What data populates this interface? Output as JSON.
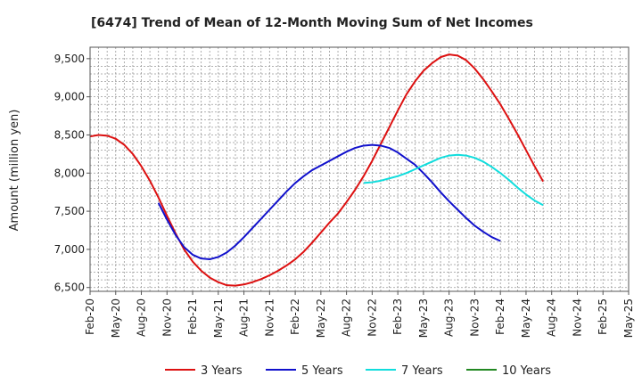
{
  "chart_data": {
    "type": "line",
    "title": "[6474]  Trend of Mean of 12-Month Moving Sum of Net Incomes",
    "ylabel": "Amount (million yen)",
    "xlabel": "",
    "ylim": [
      6450,
      9650
    ],
    "yticks": [
      6500,
      7000,
      7500,
      8000,
      8500,
      9000,
      9500
    ],
    "ytick_labels": [
      "6,500",
      "7,000",
      "7,500",
      "8,000",
      "8,500",
      "9,000",
      "9,500"
    ],
    "x_start": "2020-02",
    "x_end": "2025-05",
    "xtick_labels": [
      "Feb-20",
      "May-20",
      "Aug-20",
      "Nov-20",
      "Feb-21",
      "May-21",
      "Aug-21",
      "Nov-21",
      "Feb-22",
      "May-22",
      "Aug-22",
      "Nov-22",
      "Feb-23",
      "May-23",
      "Aug-23",
      "Nov-23",
      "Feb-24",
      "May-24",
      "Aug-24",
      "Nov-24",
      "Feb-25",
      "May-25"
    ],
    "grid": true,
    "legend_position": "bottom",
    "series": [
      {
        "name": "3 Years",
        "color": "#dd1111",
        "points": [
          [
            "2020-02",
            8480
          ],
          [
            "2020-03",
            8500
          ],
          [
            "2020-04",
            8490
          ],
          [
            "2020-05",
            8450
          ],
          [
            "2020-06",
            8370
          ],
          [
            "2020-07",
            8250
          ],
          [
            "2020-08",
            8090
          ],
          [
            "2020-09",
            7900
          ],
          [
            "2020-10",
            7680
          ],
          [
            "2020-11",
            7440
          ],
          [
            "2020-12",
            7210
          ],
          [
            "2021-01",
            7000
          ],
          [
            "2021-02",
            6840
          ],
          [
            "2021-03",
            6720
          ],
          [
            "2021-04",
            6630
          ],
          [
            "2021-05",
            6570
          ],
          [
            "2021-06",
            6530
          ],
          [
            "2021-07",
            6525
          ],
          [
            "2021-08",
            6540
          ],
          [
            "2021-09",
            6570
          ],
          [
            "2021-10",
            6610
          ],
          [
            "2021-11",
            6660
          ],
          [
            "2021-12",
            6720
          ],
          [
            "2022-01",
            6790
          ],
          [
            "2022-02",
            6870
          ],
          [
            "2022-03",
            6970
          ],
          [
            "2022-04",
            7090
          ],
          [
            "2022-05",
            7220
          ],
          [
            "2022-06",
            7350
          ],
          [
            "2022-07",
            7470
          ],
          [
            "2022-08",
            7620
          ],
          [
            "2022-09",
            7780
          ],
          [
            "2022-10",
            7960
          ],
          [
            "2022-11",
            8160
          ],
          [
            "2022-12",
            8380
          ],
          [
            "2023-01",
            8600
          ],
          [
            "2023-02",
            8820
          ],
          [
            "2023-03",
            9030
          ],
          [
            "2023-04",
            9200
          ],
          [
            "2023-05",
            9340
          ],
          [
            "2023-06",
            9440
          ],
          [
            "2023-07",
            9520
          ],
          [
            "2023-08",
            9555
          ],
          [
            "2023-09",
            9540
          ],
          [
            "2023-10",
            9480
          ],
          [
            "2023-11",
            9370
          ],
          [
            "2023-12",
            9230
          ],
          [
            "2024-01",
            9070
          ],
          [
            "2024-02",
            8900
          ],
          [
            "2024-03",
            8710
          ],
          [
            "2024-04",
            8510
          ],
          [
            "2024-05",
            8300
          ],
          [
            "2024-06",
            8090
          ],
          [
            "2024-07",
            7890
          ]
        ]
      },
      {
        "name": "5 Years",
        "color": "#1111cc",
        "points": [
          [
            "2020-10",
            7610
          ],
          [
            "2020-11",
            7390
          ],
          [
            "2020-12",
            7190
          ],
          [
            "2021-01",
            7030
          ],
          [
            "2021-02",
            6930
          ],
          [
            "2021-03",
            6880
          ],
          [
            "2021-04",
            6870
          ],
          [
            "2021-05",
            6900
          ],
          [
            "2021-06",
            6960
          ],
          [
            "2021-07",
            7050
          ],
          [
            "2021-08",
            7160
          ],
          [
            "2021-09",
            7280
          ],
          [
            "2021-10",
            7400
          ],
          [
            "2021-11",
            7520
          ],
          [
            "2021-12",
            7640
          ],
          [
            "2022-01",
            7760
          ],
          [
            "2022-02",
            7870
          ],
          [
            "2022-03",
            7960
          ],
          [
            "2022-04",
            8040
          ],
          [
            "2022-05",
            8100
          ],
          [
            "2022-06",
            8160
          ],
          [
            "2022-07",
            8220
          ],
          [
            "2022-08",
            8280
          ],
          [
            "2022-09",
            8330
          ],
          [
            "2022-10",
            8360
          ],
          [
            "2022-11",
            8370
          ],
          [
            "2022-12",
            8360
          ],
          [
            "2023-01",
            8330
          ],
          [
            "2023-02",
            8270
          ],
          [
            "2023-03",
            8190
          ],
          [
            "2023-04",
            8110
          ],
          [
            "2023-05",
            8000
          ],
          [
            "2023-06",
            7880
          ],
          [
            "2023-07",
            7750
          ],
          [
            "2023-08",
            7630
          ],
          [
            "2023-09",
            7520
          ],
          [
            "2023-10",
            7410
          ],
          [
            "2023-11",
            7310
          ],
          [
            "2023-12",
            7230
          ],
          [
            "2024-01",
            7160
          ],
          [
            "2024-02",
            7110
          ]
        ]
      },
      {
        "name": "7 Years",
        "color": "#11dddd",
        "points": [
          [
            "2022-10",
            7870
          ],
          [
            "2022-11",
            7880
          ],
          [
            "2022-12",
            7900
          ],
          [
            "2023-01",
            7930
          ],
          [
            "2023-02",
            7960
          ],
          [
            "2023-03",
            8000
          ],
          [
            "2023-04",
            8050
          ],
          [
            "2023-05",
            8100
          ],
          [
            "2023-06",
            8150
          ],
          [
            "2023-07",
            8200
          ],
          [
            "2023-08",
            8230
          ],
          [
            "2023-09",
            8240
          ],
          [
            "2023-10",
            8230
          ],
          [
            "2023-11",
            8200
          ],
          [
            "2023-12",
            8150
          ],
          [
            "2024-01",
            8080
          ],
          [
            "2024-02",
            8000
          ],
          [
            "2024-03",
            7910
          ],
          [
            "2024-04",
            7810
          ],
          [
            "2024-05",
            7720
          ],
          [
            "2024-06",
            7640
          ],
          [
            "2024-07",
            7580
          ]
        ]
      },
      {
        "name": "10 Years",
        "color": "#228822",
        "points": []
      }
    ]
  }
}
